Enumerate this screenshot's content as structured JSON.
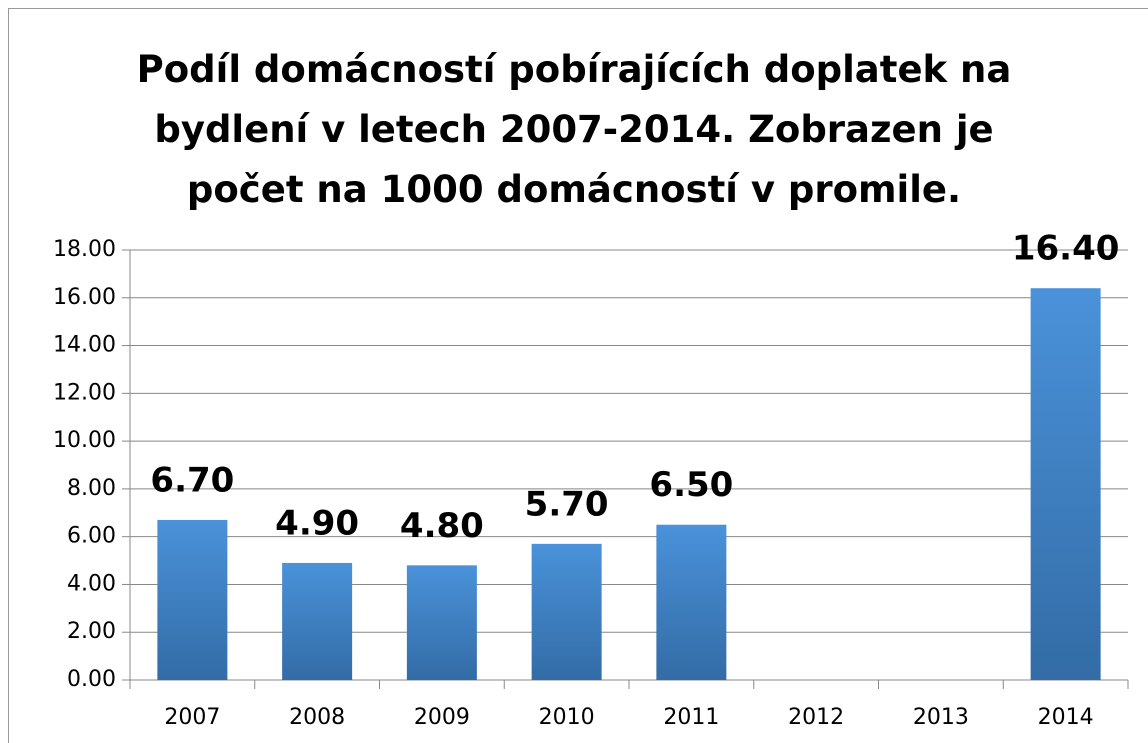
{
  "chart_data": {
    "type": "bar",
    "title": "Podíl domácností pobírajících doplatek na bydlení v letech 2007-2014. Zobrazen je počet na 1000 domácností v promile.",
    "categories": [
      "2007",
      "2008",
      "2009",
      "2010",
      "2011",
      "2012",
      "2013",
      "2014"
    ],
    "values": [
      6.7,
      4.9,
      4.8,
      5.7,
      6.5,
      null,
      null,
      16.4
    ],
    "value_labels": [
      "6.70",
      "4.90",
      "4.80",
      "5.70",
      "6.50",
      null,
      null,
      "16.40"
    ],
    "color": "#4a8fd4",
    "ylim": [
      0,
      18
    ],
    "yticks": [
      {
        "value": 0,
        "label": "0.00"
      },
      {
        "value": 2,
        "label": "2.00"
      },
      {
        "value": 4,
        "label": "4.00"
      },
      {
        "value": 6,
        "label": "6.00"
      },
      {
        "value": 8,
        "label": "8.00"
      },
      {
        "value": 10,
        "label": "10.00"
      },
      {
        "value": 12,
        "label": "12.00"
      },
      {
        "value": 14,
        "label": "14.00"
      },
      {
        "value": 16,
        "label": "16.00"
      },
      {
        "value": 18,
        "label": "18.00"
      }
    ],
    "grid": true
  }
}
